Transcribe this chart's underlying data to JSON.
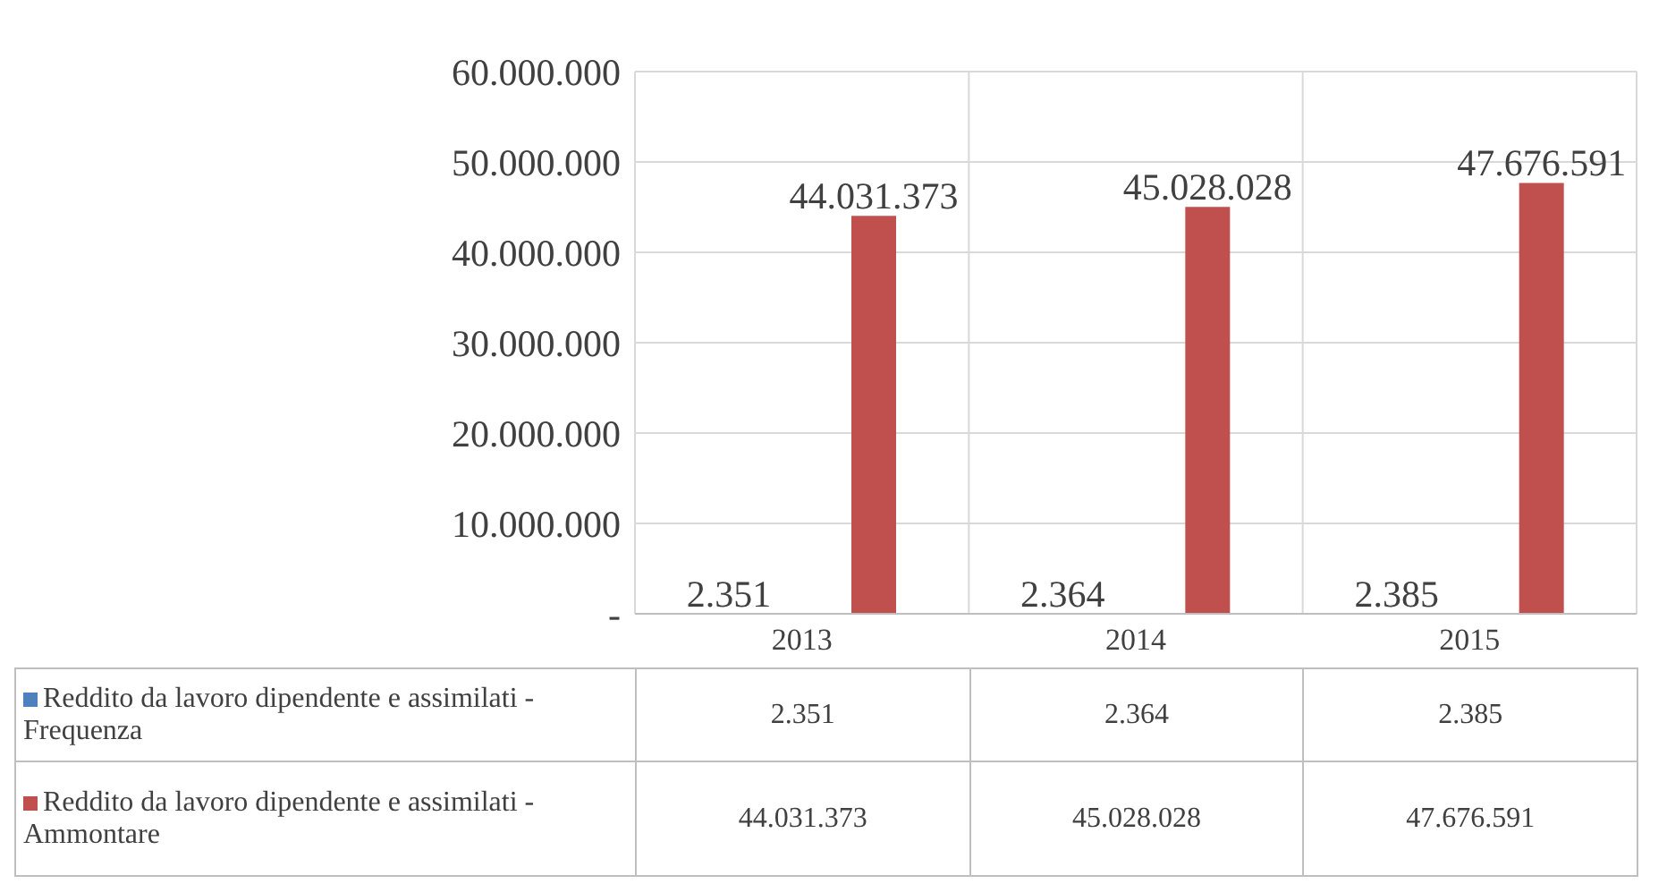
{
  "chart_data": {
    "type": "bar",
    "categories": [
      "2013",
      "2014",
      "2015"
    ],
    "series": [
      {
        "name": "Reddito da lavoro dipendente e assimilati - Frequenza",
        "color": "#4f81bd",
        "values": [
          2351,
          2364,
          2385
        ],
        "value_labels": [
          "2.351",
          "2.364",
          "2.385"
        ]
      },
      {
        "name": "Reddito da lavoro dipendente e assimilati - Ammontare",
        "color": "#c0504d",
        "values": [
          44031373,
          45028028,
          47676591
        ],
        "value_labels": [
          "44.031.373",
          "45.028.028",
          "47.676.591"
        ]
      }
    ],
    "ylim": [
      0,
      60000000
    ],
    "yticks": [
      {
        "value": 0,
        "label": "-"
      },
      {
        "value": 10000000,
        "label": "10.000.000"
      },
      {
        "value": 20000000,
        "label": "20.000.000"
      },
      {
        "value": 30000000,
        "label": "30.000.000"
      },
      {
        "value": 40000000,
        "label": "40.000.000"
      },
      {
        "value": 50000000,
        "label": "50.000.000"
      },
      {
        "value": 60000000,
        "label": "60.000.000"
      }
    ],
    "grid": true,
    "legend": "bottom"
  }
}
